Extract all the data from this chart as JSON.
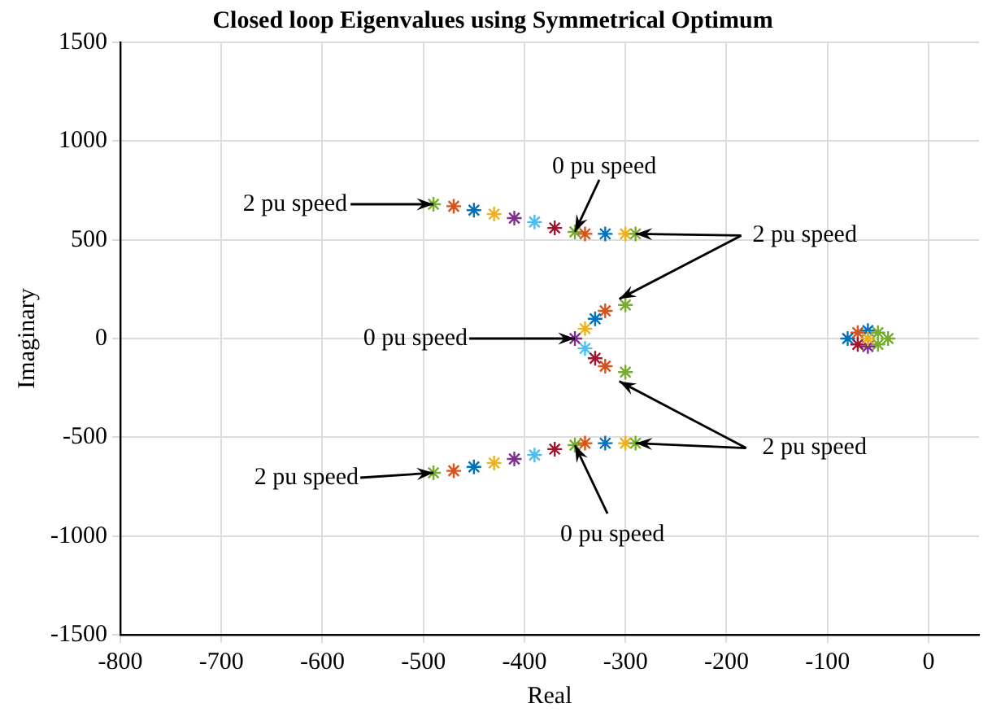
{
  "chart_data": {
    "type": "scatter",
    "title": "Closed loop Eigenvalues using Symmetrical Optimum",
    "xlabel": "Real",
    "ylabel": "Imaginary",
    "xlim": [
      -800,
      50
    ],
    "xticks": [
      -800,
      -700,
      -600,
      -500,
      -400,
      -300,
      -200,
      -100,
      0
    ],
    "ylim": [
      -1500,
      1500
    ],
    "yticks": [
      -1500,
      -1000,
      -500,
      0,
      500,
      1000,
      1500
    ],
    "grid": true,
    "legend": false,
    "marker": "cross",
    "series": [
      {
        "x": [
          -490,
          -470,
          -450,
          -430,
          -410,
          -390,
          -370,
          -350,
          -340,
          -320,
          -300,
          -290,
          -490,
          -470,
          -450,
          -430,
          -410,
          -390,
          -370,
          -350,
          -340,
          -320,
          -300,
          -290,
          -300,
          -320,
          -330,
          -340,
          -350,
          -340,
          -330,
          -320,
          -300,
          -70,
          -60,
          -50,
          -40,
          -50,
          -60,
          -70,
          -80,
          -60
        ],
        "values": [
          680,
          670,
          650,
          630,
          610,
          590,
          560,
          540,
          530,
          530,
          530,
          530,
          -680,
          -670,
          -650,
          -630,
          -610,
          -590,
          -560,
          -540,
          -530,
          -530,
          -530,
          -530,
          170,
          140,
          100,
          50,
          0,
          -50,
          -100,
          -140,
          -170,
          30,
          40,
          30,
          0,
          -30,
          -40,
          -30,
          0,
          0
        ],
        "colors": [
          "#77ac30",
          "#d95319",
          "#0072bd",
          "#edb120",
          "#7e2f8e",
          "#4dbeee",
          "#a2142f",
          "#77ac30",
          "#d95319",
          "#0072bd",
          "#edb120",
          "#77ac30",
          "#77ac30",
          "#d95319",
          "#0072bd",
          "#edb120",
          "#7e2f8e",
          "#4dbeee",
          "#a2142f",
          "#77ac30",
          "#d95319",
          "#0072bd",
          "#edb120",
          "#77ac30",
          "#77ac30",
          "#d95319",
          "#0072bd",
          "#edb120",
          "#7e2f8e",
          "#4dbeee",
          "#a2142f",
          "#d95319",
          "#77ac30",
          "#d95319",
          "#0072bd",
          "#77ac30",
          "#77ac30",
          "#77ac30",
          "#7e2f8e",
          "#a2142f",
          "#0072bd",
          "#edb120"
        ]
      }
    ],
    "annotations": [
      {
        "text": "2 pu speed",
        "x": -490,
        "y": 680
      },
      {
        "text": "0 pu speed",
        "x": -350,
        "y": 540
      },
      {
        "text": "2 pu speed",
        "x": -290,
        "y": 530
      },
      {
        "text": "0 pu speed",
        "x": -350,
        "y": 0
      },
      {
        "text": "2 pu speed",
        "x": -290,
        "y": -530
      },
      {
        "text": "2 pu speed",
        "x": -490,
        "y": -680
      },
      {
        "text": "0 pu speed",
        "x": -350,
        "y": -540
      }
    ]
  }
}
